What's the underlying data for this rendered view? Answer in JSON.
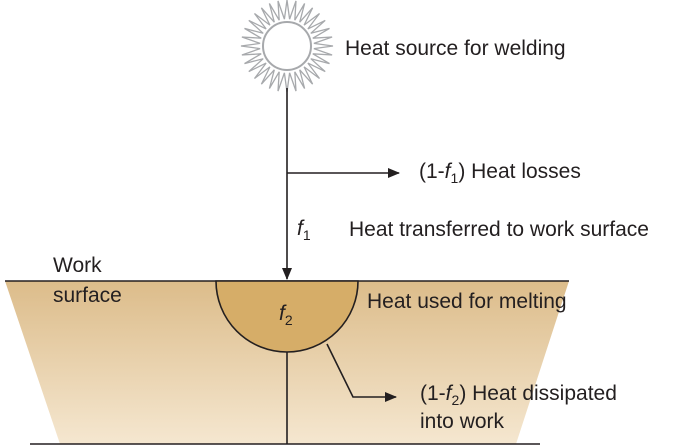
{
  "labels": {
    "heat_source": "Heat source for welding",
    "losses": {
      "prefix": "(1-",
      "var": "f",
      "sub": "1",
      "suffix": ") Heat losses"
    },
    "f1": {
      "var": "f",
      "sub": "1"
    },
    "transferred": "Heat transferred to work surface",
    "work_surface_line1": "Work",
    "work_surface_line2": "surface",
    "f2": {
      "var": "f",
      "sub": "2"
    },
    "melting": "Heat used for melting",
    "dissipated": {
      "prefix": "(1-",
      "var": "f",
      "sub": "2",
      "suffix": ") Heat dissipated",
      "line2": "into work"
    }
  },
  "colors": {
    "workpiece_light": "#f5e7d0",
    "workpiece_dark": "#dcbc8a",
    "melt_pool": "#d6ad68",
    "sun_rays": "#a7a9ac",
    "line": "#231f20"
  }
}
